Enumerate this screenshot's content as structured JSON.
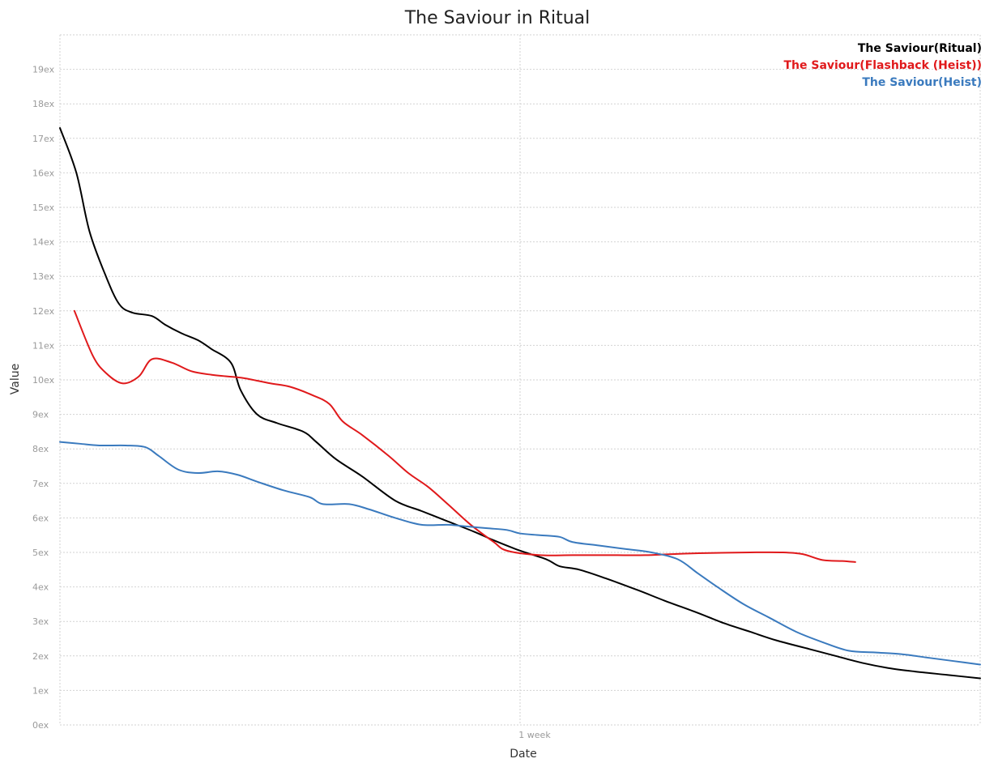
{
  "chart_data": {
    "type": "line",
    "title": "The Saviour in Ritual",
    "xlabel": "Date",
    "ylabel": "Value",
    "x_ticks": [
      {
        "day": 7,
        "label": "1 week"
      }
    ],
    "y_ticks": [
      "0ex",
      "1ex",
      "2ex",
      "3ex",
      "4ex",
      "5ex",
      "6ex",
      "7ex",
      "8ex",
      "9ex",
      "10ex",
      "11ex",
      "12ex",
      "13ex",
      "14ex",
      "15ex",
      "16ex",
      "17ex",
      "18ex",
      "19ex"
    ],
    "xlim": [
      0,
      14
    ],
    "ylim": [
      0,
      20
    ],
    "grid": true,
    "legend_position": "top-right",
    "series": [
      {
        "name": "The Saviour(Ritual)",
        "color": "#000000",
        "points": [
          [
            0,
            17.3
          ],
          [
            0.25,
            16.0
          ],
          [
            0.45,
            14.3
          ],
          [
            0.7,
            13.0
          ],
          [
            0.9,
            12.2
          ],
          [
            1.1,
            11.95
          ],
          [
            1.4,
            11.85
          ],
          [
            1.6,
            11.6
          ],
          [
            1.85,
            11.35
          ],
          [
            2.1,
            11.15
          ],
          [
            2.3,
            10.9
          ],
          [
            2.6,
            10.5
          ],
          [
            2.75,
            9.7
          ],
          [
            3.0,
            9.0
          ],
          [
            3.3,
            8.75
          ],
          [
            3.7,
            8.5
          ],
          [
            3.9,
            8.2
          ],
          [
            4.2,
            7.7
          ],
          [
            4.6,
            7.2
          ],
          [
            5.1,
            6.5
          ],
          [
            5.5,
            6.2
          ],
          [
            5.9,
            5.9
          ],
          [
            6.3,
            5.6
          ],
          [
            6.6,
            5.35
          ],
          [
            7.0,
            5.05
          ],
          [
            7.4,
            4.8
          ],
          [
            7.6,
            4.6
          ],
          [
            7.9,
            4.5
          ],
          [
            8.3,
            4.25
          ],
          [
            8.8,
            3.9
          ],
          [
            9.2,
            3.6
          ],
          [
            9.7,
            3.25
          ],
          [
            10.1,
            2.95
          ],
          [
            10.5,
            2.7
          ],
          [
            10.9,
            2.45
          ],
          [
            11.4,
            2.2
          ],
          [
            11.8,
            2.0
          ],
          [
            12.2,
            1.8
          ],
          [
            12.6,
            1.65
          ],
          [
            13.0,
            1.55
          ],
          [
            13.5,
            1.45
          ],
          [
            14.0,
            1.35
          ]
        ]
      },
      {
        "name": "The Saviour(Flashback (Heist))",
        "color": "#e0191b",
        "points": [
          [
            0.22,
            12.0
          ],
          [
            0.5,
            10.7
          ],
          [
            0.7,
            10.2
          ],
          [
            0.95,
            9.9
          ],
          [
            1.2,
            10.1
          ],
          [
            1.4,
            10.6
          ],
          [
            1.7,
            10.5
          ],
          [
            2.0,
            10.25
          ],
          [
            2.3,
            10.15
          ],
          [
            2.55,
            10.1
          ],
          [
            2.8,
            10.05
          ],
          [
            3.2,
            9.9
          ],
          [
            3.5,
            9.8
          ],
          [
            3.85,
            9.55
          ],
          [
            4.1,
            9.3
          ],
          [
            4.3,
            8.8
          ],
          [
            4.6,
            8.4
          ],
          [
            5.0,
            7.8
          ],
          [
            5.3,
            7.3
          ],
          [
            5.6,
            6.9
          ],
          [
            5.9,
            6.4
          ],
          [
            6.25,
            5.8
          ],
          [
            6.6,
            5.3
          ],
          [
            6.8,
            5.05
          ],
          [
            7.3,
            4.92
          ],
          [
            7.8,
            4.92
          ],
          [
            8.4,
            4.92
          ],
          [
            8.9,
            4.92
          ],
          [
            9.3,
            4.95
          ],
          [
            9.8,
            4.98
          ],
          [
            10.5,
            5.0
          ],
          [
            11.0,
            5.0
          ],
          [
            11.3,
            4.95
          ],
          [
            11.6,
            4.78
          ],
          [
            11.9,
            4.75
          ],
          [
            12.1,
            4.72
          ]
        ]
      },
      {
        "name": "The Saviour(Heist)",
        "color": "#3a7abe",
        "points": [
          [
            0,
            8.2
          ],
          [
            0.3,
            8.15
          ],
          [
            0.6,
            8.1
          ],
          [
            1.0,
            8.1
          ],
          [
            1.3,
            8.05
          ],
          [
            1.5,
            7.8
          ],
          [
            1.8,
            7.4
          ],
          [
            2.1,
            7.3
          ],
          [
            2.4,
            7.35
          ],
          [
            2.7,
            7.25
          ],
          [
            3.0,
            7.05
          ],
          [
            3.4,
            6.8
          ],
          [
            3.8,
            6.6
          ],
          [
            4.0,
            6.4
          ],
          [
            4.4,
            6.4
          ],
          [
            4.7,
            6.25
          ],
          [
            5.1,
            6.0
          ],
          [
            5.5,
            5.8
          ],
          [
            5.9,
            5.8
          ],
          [
            6.2,
            5.75
          ],
          [
            6.5,
            5.7
          ],
          [
            6.8,
            5.65
          ],
          [
            7.0,
            5.55
          ],
          [
            7.3,
            5.5
          ],
          [
            7.6,
            5.45
          ],
          [
            7.8,
            5.3
          ],
          [
            8.2,
            5.2
          ],
          [
            8.6,
            5.1
          ],
          [
            9.0,
            5.0
          ],
          [
            9.4,
            4.8
          ],
          [
            9.7,
            4.4
          ],
          [
            10.0,
            4.0
          ],
          [
            10.4,
            3.5
          ],
          [
            10.8,
            3.1
          ],
          [
            11.2,
            2.7
          ],
          [
            11.6,
            2.4
          ],
          [
            12.0,
            2.15
          ],
          [
            12.4,
            2.1
          ],
          [
            12.8,
            2.05
          ],
          [
            13.2,
            1.95
          ],
          [
            13.6,
            1.85
          ],
          [
            14.0,
            1.75
          ]
        ]
      }
    ]
  }
}
